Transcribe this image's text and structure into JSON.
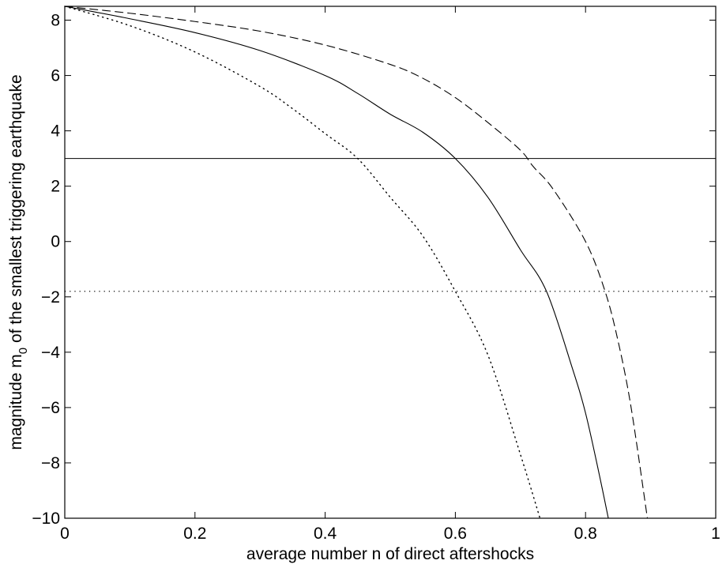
{
  "chart_data": {
    "type": "line",
    "xlabel": "average number n of direct aftershocks",
    "ylabel": {
      "prefix": "magnitude m",
      "subscript": "0",
      "suffix": " of the smallest triggering earthquake"
    },
    "xlim": [
      0,
      1
    ],
    "ylim": [
      -10,
      8.5
    ],
    "xticks": [
      0,
      0.2,
      0.4,
      0.6,
      0.8,
      1
    ],
    "xtick_labels": [
      "0",
      "0.2",
      "0.4",
      "0.6",
      "0.8",
      "1"
    ],
    "yticks": [
      -10,
      -8,
      -6,
      -4,
      -2,
      0,
      2,
      4,
      6,
      8
    ],
    "ytick_labels": [
      "−10",
      "−8",
      "−6",
      "−4",
      "−2",
      "0",
      "2",
      "4",
      "6",
      "8"
    ],
    "grid": false,
    "series": [
      {
        "style": "solid",
        "x": [
          0,
          0.1,
          0.2,
          0.3,
          0.4,
          0.45,
          0.5,
          0.55,
          0.6,
          0.65,
          0.7,
          0.74,
          0.78,
          0.8,
          0.82,
          0.835
        ],
        "y": [
          8.5,
          8.05,
          7.55,
          6.9,
          6.0,
          5.35,
          4.6,
          3.95,
          3.0,
          1.6,
          -0.3,
          -1.8,
          -4.6,
          -6.2,
          -8.3,
          -10
        ]
      },
      {
        "style": "dashed",
        "x": [
          0,
          0.1,
          0.2,
          0.3,
          0.4,
          0.5,
          0.55,
          0.6,
          0.65,
          0.7,
          0.72,
          0.75,
          0.8,
          0.83,
          0.85,
          0.87,
          0.895
        ],
        "y": [
          8.5,
          8.25,
          7.95,
          7.6,
          7.1,
          6.4,
          5.9,
          5.2,
          4.3,
          3.3,
          2.7,
          1.9,
          0.0,
          -1.8,
          -3.6,
          -6.0,
          -10
        ]
      },
      {
        "style": "dotted",
        "x": [
          0,
          0.1,
          0.2,
          0.3,
          0.35,
          0.4,
          0.45,
          0.5,
          0.55,
          0.6,
          0.65,
          0.7,
          0.73
        ],
        "y": [
          8.5,
          7.8,
          6.85,
          5.6,
          4.8,
          3.9,
          3.0,
          1.6,
          0.2,
          -1.8,
          -4.1,
          -7.7,
          -10
        ]
      }
    ],
    "reference_lines": [
      {
        "style": "solid",
        "y": 3.0
      },
      {
        "style": "dotted",
        "y": -1.8
      }
    ]
  }
}
